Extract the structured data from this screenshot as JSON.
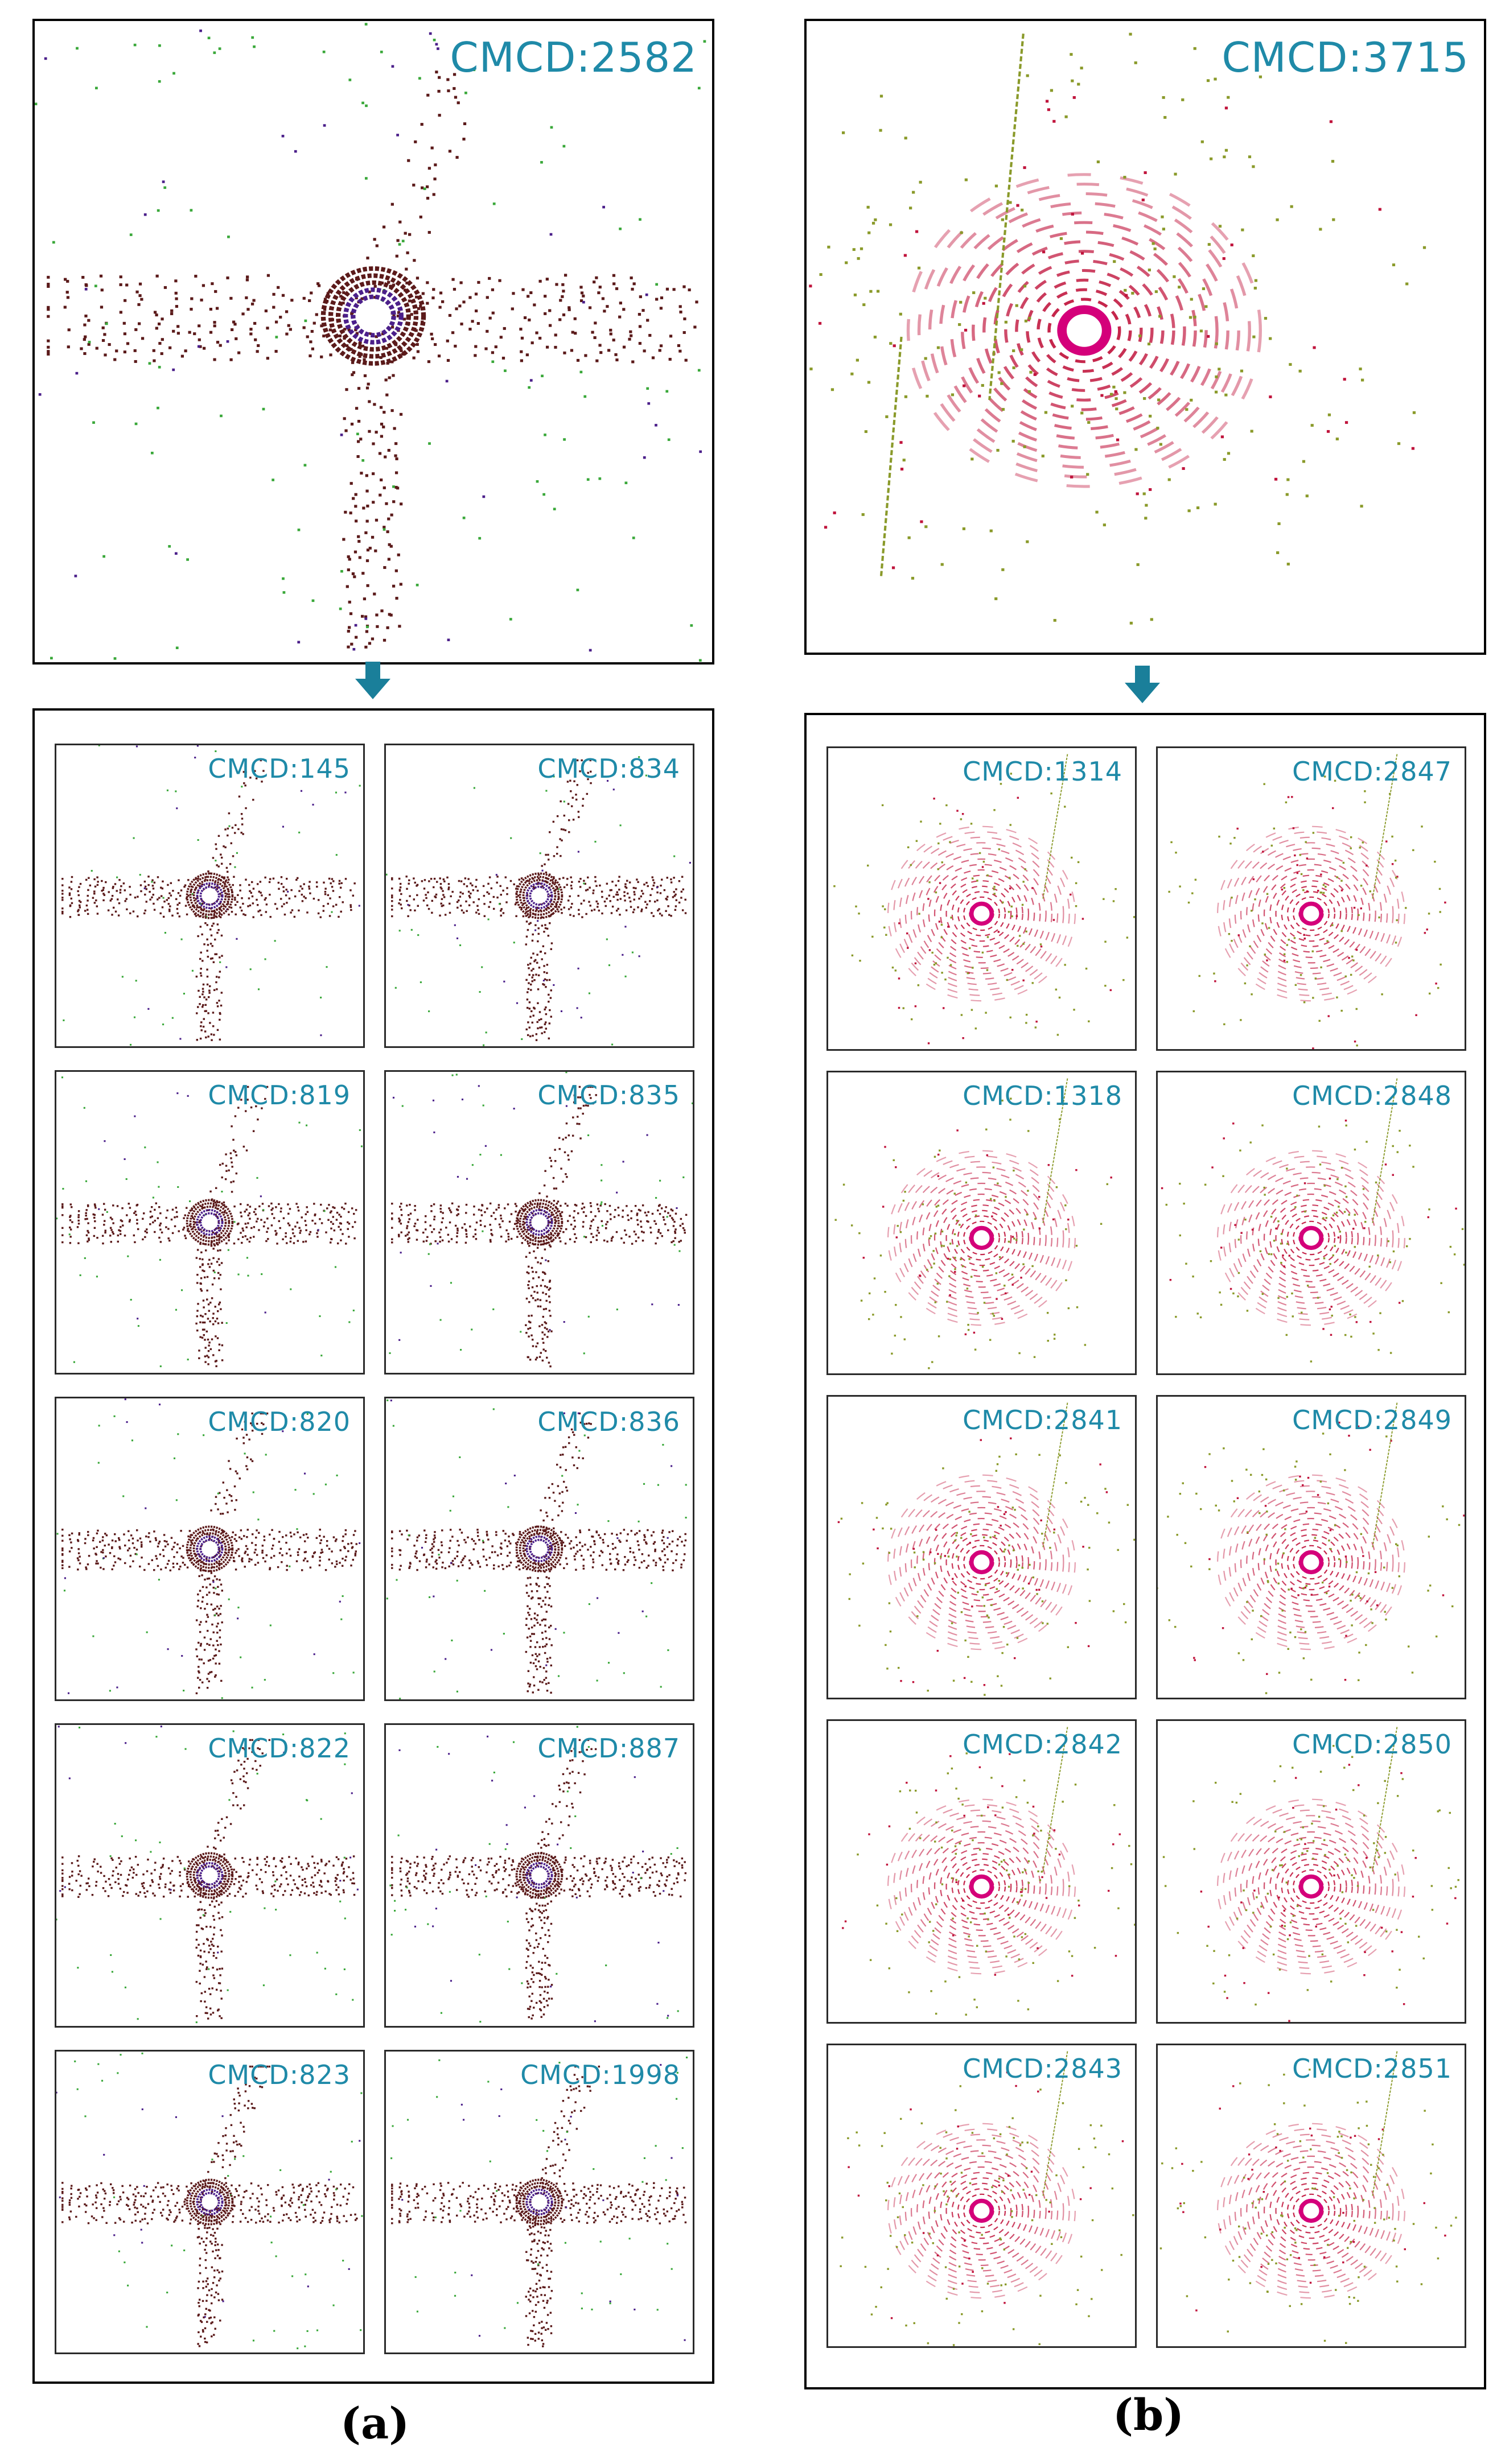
{
  "panel_a": {
    "main_label": "CMCD:2582",
    "caption": "(a)",
    "tiles": [
      "CMCD:145",
      "CMCD:834",
      "CMCD:819",
      "CMCD:835",
      "CMCD:820",
      "CMCD:836",
      "CMCD:822",
      "CMCD:887",
      "CMCD:823",
      "CMCD:1998"
    ]
  },
  "panel_b": {
    "main_label": "CMCD:3715",
    "caption": "(b)",
    "tiles": [
      "CMCD:1314",
      "CMCD:2847",
      "CMCD:1318",
      "CMCD:2848",
      "CMCD:2841",
      "CMCD:2849",
      "CMCD:2842",
      "CMCD:2850",
      "CMCD:2843",
      "CMCD:2851"
    ]
  },
  "colors": {
    "label": "#1f8aa8",
    "arrow": "#1a7f9a",
    "a_ring": "#5b1a1a",
    "a_center": "#4b1f8a",
    "a_veg": "#3aa83a",
    "b_ring": "#c0143c",
    "b_veg": "#8a9a2a",
    "b_center": "#d4007a"
  }
}
